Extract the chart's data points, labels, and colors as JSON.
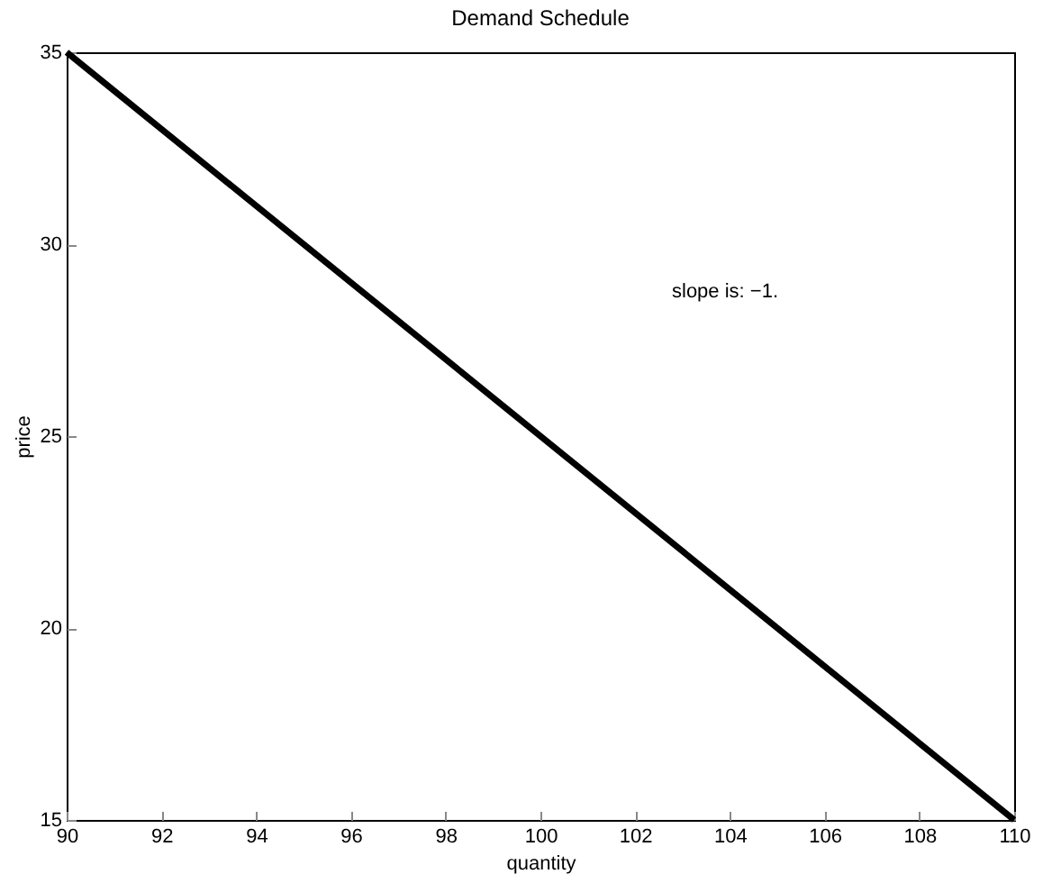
{
  "chart_data": {
    "type": "line",
    "title": "Demand Schedule",
    "xlabel": "quantity",
    "ylabel": "price",
    "x": [
      90,
      110
    ],
    "series": [
      {
        "color": "#000000",
        "values": [
          35,
          15
        ]
      }
    ],
    "xlim": [
      90,
      110
    ],
    "xticks": [
      90,
      92,
      94,
      96,
      98,
      100,
      102,
      104,
      106,
      108,
      110
    ],
    "ylim": [
      15,
      35
    ],
    "yticks": [
      15,
      20,
      25,
      30,
      35
    ],
    "grid": false,
    "legend": false,
    "marker": "none",
    "line_style": "solid",
    "annotations": [
      "slope is: −1."
    ]
  }
}
